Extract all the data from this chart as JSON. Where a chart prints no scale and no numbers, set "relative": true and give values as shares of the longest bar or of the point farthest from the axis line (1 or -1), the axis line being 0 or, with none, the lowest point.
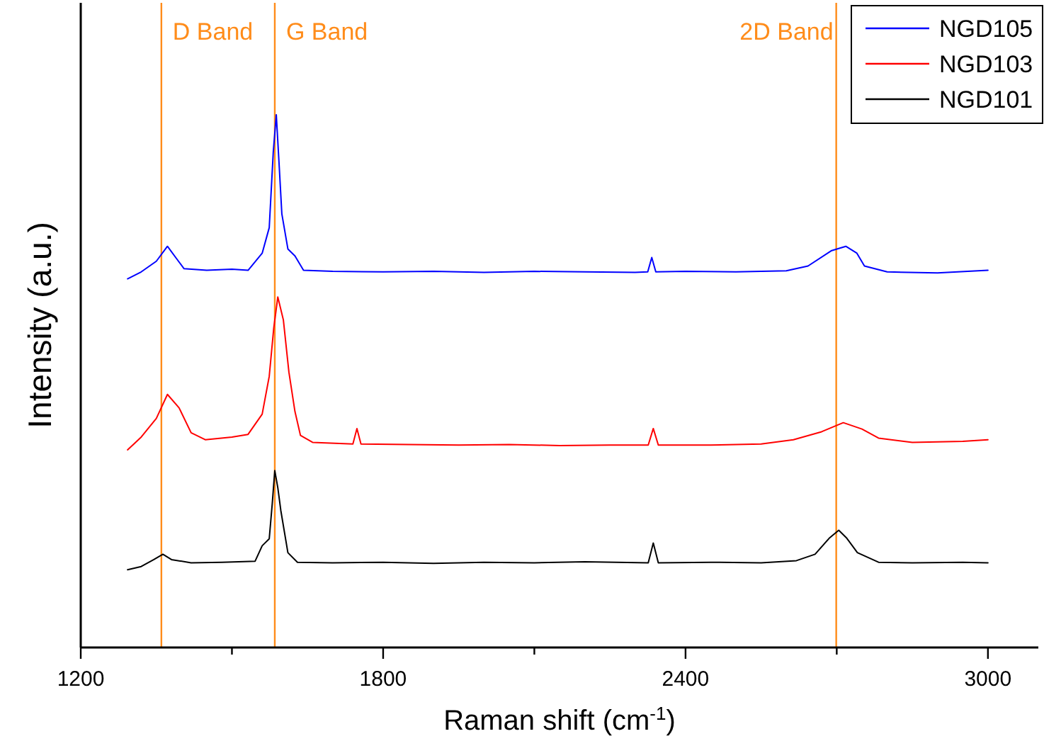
{
  "chart_data": {
    "type": "line",
    "xlabel": "Raman shift (cm$^{-1}$)",
    "ylabel": "Intensity (a.u.)",
    "relative": true,
    "xlim": [
      1200,
      3100
    ],
    "xticks": [
      1200,
      {
        "value": 1500,
        "label": null
      },
      1800,
      {
        "value": 2100,
        "label": null
      },
      2400,
      {
        "value": 2700,
        "label": null
      },
      3000
    ],
    "legend": "top right",
    "line_style": "solid",
    "marker": "none",
    "ref_lines": [
      {
        "axis": "x",
        "value": 1360,
        "label": "D Band",
        "color": "#ff8c1a"
      },
      {
        "axis": "x",
        "value": 1585,
        "label": "G Band",
        "color": "#ff8c1a"
      },
      {
        "axis": "x",
        "value": 2699,
        "label": "2D Band",
        "color": "#ff8c1a"
      }
    ],
    "series": [
      {
        "name": "NGD105",
        "color": "#0000ff",
        "x": [
          1293,
          1320,
          1350,
          1372,
          1390,
          1405,
          1450,
          1500,
          1532,
          1560,
          1574,
          1582,
          1588,
          1594,
          1599,
          1611,
          1625,
          1642,
          1700,
          1800,
          1900,
          2000,
          2100,
          2200,
          2300,
          2325,
          2333,
          2341,
          2400,
          2500,
          2600,
          2643,
          2690,
          2718,
          2740,
          2755,
          2800,
          2900,
          3000
        ],
        "values": [
          0.692,
          0.705,
          0.725,
          0.753,
          0.73,
          0.711,
          0.708,
          0.71,
          0.708,
          0.74,
          0.788,
          0.93,
          1.0,
          0.9,
          0.814,
          0.748,
          0.735,
          0.708,
          0.706,
          0.705,
          0.706,
          0.704,
          0.706,
          0.705,
          0.704,
          0.705,
          0.732,
          0.705,
          0.706,
          0.705,
          0.707,
          0.716,
          0.745,
          0.753,
          0.74,
          0.716,
          0.705,
          0.703,
          0.708
        ]
      },
      {
        "name": "NGD103",
        "color": "#ff0000",
        "x": [
          1293,
          1320,
          1350,
          1372,
          1395,
          1419,
          1447,
          1500,
          1532,
          1560,
          1574,
          1583,
          1591,
          1602,
          1613,
          1625,
          1636,
          1660,
          1740,
          1748,
          1756,
          1850,
          1950,
          2050,
          2150,
          2250,
          2326,
          2336,
          2346,
          2450,
          2550,
          2614,
          2670,
          2713,
          2750,
          2783,
          2850,
          2950,
          3000
        ],
        "values": [
          0.371,
          0.395,
          0.43,
          0.475,
          0.45,
          0.403,
          0.39,
          0.395,
          0.4,
          0.438,
          0.509,
          0.6,
          0.658,
          0.615,
          0.517,
          0.443,
          0.398,
          0.385,
          0.382,
          0.411,
          0.382,
          0.381,
          0.38,
          0.381,
          0.379,
          0.38,
          0.38,
          0.411,
          0.38,
          0.38,
          0.382,
          0.39,
          0.405,
          0.422,
          0.41,
          0.393,
          0.385,
          0.387,
          0.39
        ]
      },
      {
        "name": "NGD101",
        "color": "#000000",
        "x": [
          1293,
          1320,
          1345,
          1363,
          1380,
          1419,
          1480,
          1546,
          1560,
          1574,
          1580,
          1585,
          1591,
          1597,
          1611,
          1630,
          1700,
          1800,
          1900,
          2000,
          2100,
          2200,
          2326,
          2336,
          2346,
          2450,
          2550,
          2620,
          2657,
          2685,
          2704,
          2720,
          2741,
          2783,
          2850,
          2950,
          3000
        ],
        "values": [
          0.146,
          0.152,
          0.165,
          0.175,
          0.165,
          0.159,
          0.16,
          0.162,
          0.191,
          0.204,
          0.27,
          0.332,
          0.3,
          0.257,
          0.178,
          0.16,
          0.159,
          0.16,
          0.158,
          0.16,
          0.159,
          0.161,
          0.159,
          0.196,
          0.159,
          0.16,
          0.159,
          0.163,
          0.175,
          0.205,
          0.22,
          0.205,
          0.178,
          0.16,
          0.159,
          0.16,
          0.159
        ]
      }
    ]
  }
}
